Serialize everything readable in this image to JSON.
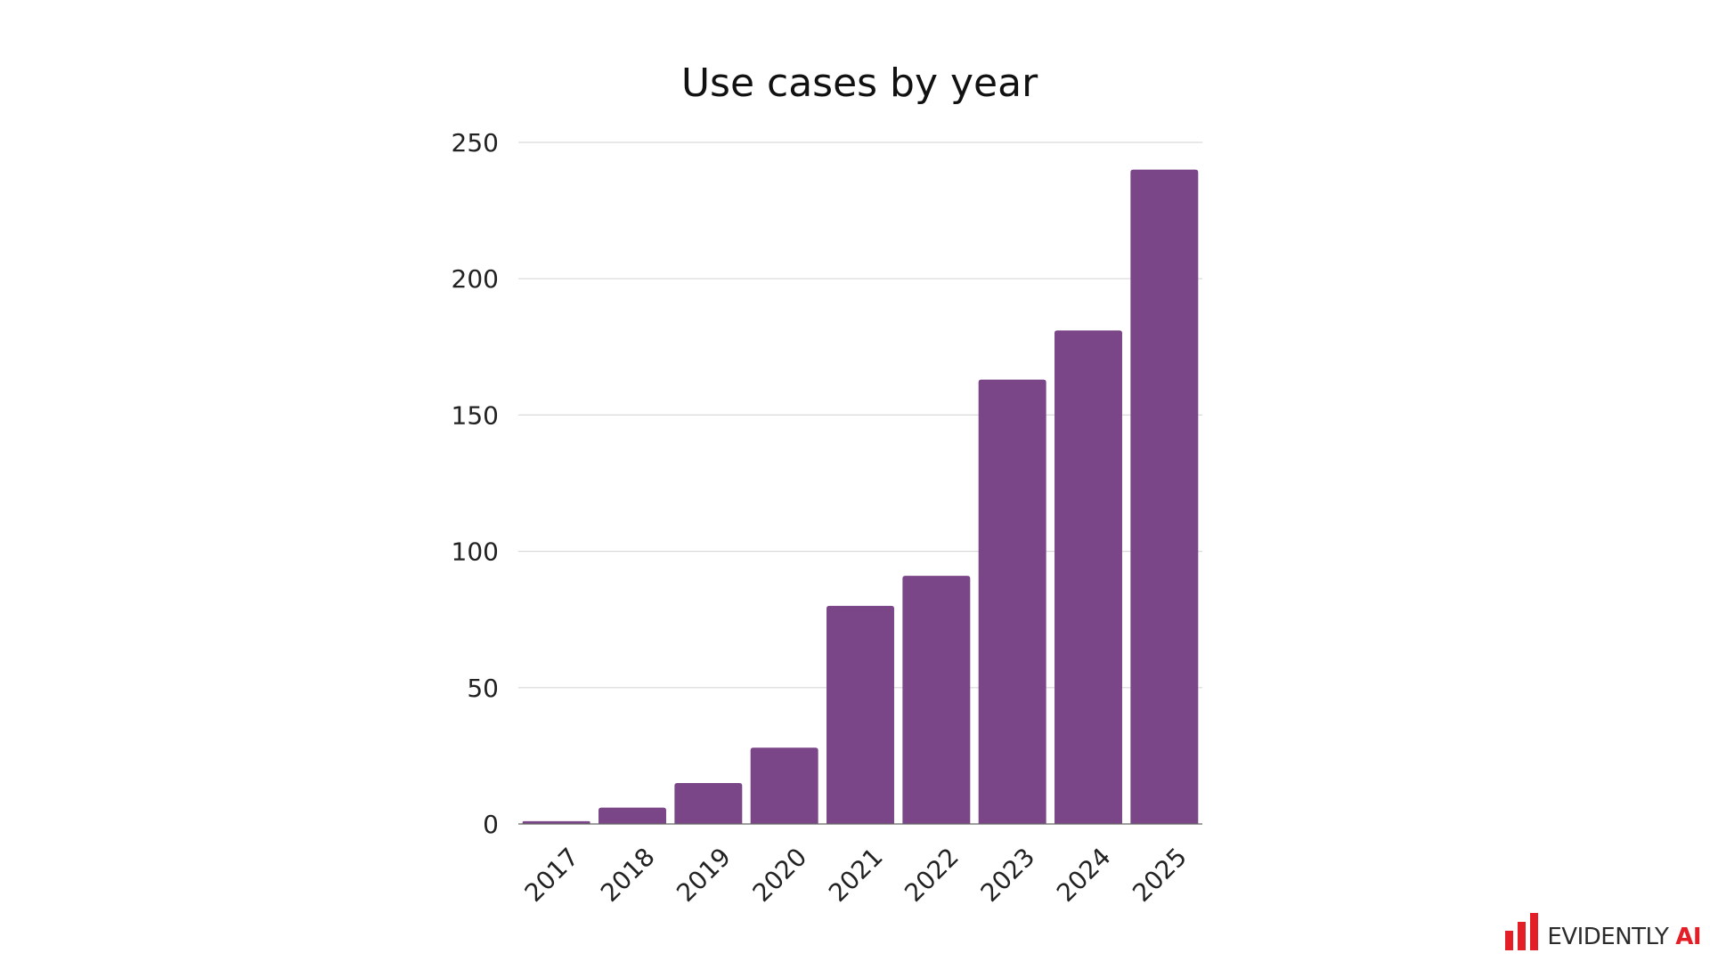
{
  "chart_data": {
    "type": "bar",
    "title": "Use cases by year",
    "xlabel": "",
    "ylabel": "",
    "categories": [
      "2017",
      "2018",
      "2019",
      "2020",
      "2021",
      "2022",
      "2023",
      "2024",
      "2025"
    ],
    "values": [
      1,
      6,
      15,
      28,
      80,
      91,
      163,
      181,
      240
    ],
    "ylim": [
      0,
      250
    ],
    "yticks": [
      0,
      50,
      100,
      150,
      200,
      250
    ],
    "grid": true,
    "bar_color": "#7b4687"
  },
  "logo": {
    "text": "EVIDENTLY",
    "accent_text": "AI",
    "accent_color": "#e41e26"
  }
}
